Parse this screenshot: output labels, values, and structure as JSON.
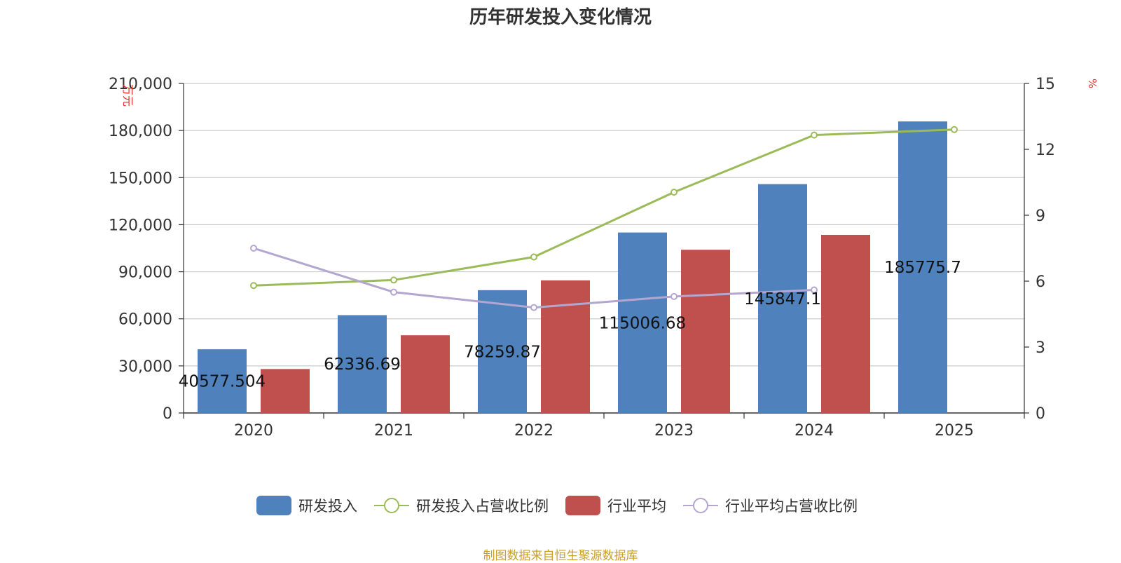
{
  "title": "历年研发投入变化情况",
  "source": "制图数据来自恒生聚源数据库",
  "colors": {
    "rd": "#4f81bd",
    "industry": "#c0504d",
    "rd_ratio": "#9bbb59",
    "industry_ratio": "#b3a6d0",
    "grid": "#cccccc",
    "axis": "#333333"
  },
  "legend": [
    {
      "label": "研发投入",
      "kind": "bar",
      "color": "#4f81bd"
    },
    {
      "label": "研发投入占营收比例",
      "kind": "line",
      "color": "#9bbb59"
    },
    {
      "label": "行业平均",
      "kind": "bar",
      "color": "#c0504d"
    },
    {
      "label": "行业平均占营收比例",
      "kind": "line",
      "color": "#b3a6d0"
    }
  ],
  "chart_data": {
    "type": "bar",
    "title": "历年研发投入变化情况",
    "categories": [
      "2020",
      "2021",
      "2022",
      "2023",
      "2024",
      "2025"
    ],
    "ylabel": "万元",
    "ylabel_right": "%",
    "ylim": [
      0,
      210000
    ],
    "ylim_right": [
      0,
      15
    ],
    "yticks": [
      0,
      30000,
      60000,
      90000,
      120000,
      150000,
      180000,
      210000
    ],
    "ytick_labels": [
      "0",
      "30,000",
      "60,000",
      "90,000",
      "120,000",
      "150,000",
      "180,000",
      "210,000"
    ],
    "yticks_right": [
      0,
      3,
      6,
      9,
      12,
      15
    ],
    "ytick_labels_right": [
      "0",
      "3",
      "6",
      "9",
      "12",
      "15"
    ],
    "grid": true,
    "legend_position": "bottom",
    "series": [
      {
        "name": "研发投入",
        "type": "bar",
        "axis": "left",
        "values": [
          40577.504,
          62336.69,
          78259.87,
          115006.68,
          145847.1,
          185775.7
        ],
        "data_labels": [
          "40577.504",
          "62336.69",
          "78259.87",
          "115006.68",
          "145847.1",
          "185775.7"
        ]
      },
      {
        "name": "行业平均",
        "type": "bar",
        "axis": "left",
        "values": [
          28000,
          49500,
          84500,
          104000,
          113500,
          null
        ]
      },
      {
        "name": "研发投入占营收比例",
        "type": "line",
        "axis": "right",
        "values": [
          5.8,
          6.05,
          7.1,
          10.05,
          12.65,
          12.9
        ]
      },
      {
        "name": "行业平均占营收比例",
        "type": "line",
        "axis": "right",
        "values": [
          7.5,
          5.5,
          4.8,
          5.3,
          5.6,
          null
        ]
      }
    ]
  }
}
